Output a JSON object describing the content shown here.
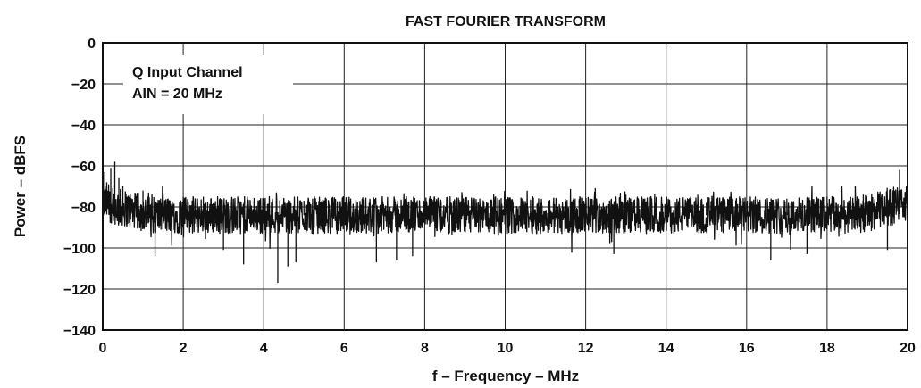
{
  "chart_data": {
    "type": "line",
    "title": "FAST FOURIER TRANSFORM",
    "xlabel": "f – Frequency – MHz",
    "ylabel": "Power – dBFS",
    "xlim": [
      0,
      20
    ],
    "ylim": [
      -140,
      0
    ],
    "xticks": [
      0,
      2,
      4,
      6,
      8,
      10,
      12,
      14,
      16,
      18,
      20
    ],
    "yticks": [
      0,
      -20,
      -40,
      -60,
      -80,
      -100,
      -120,
      -140
    ],
    "xtick_labels": [
      "0",
      "2",
      "4",
      "6",
      "8",
      "10",
      "12",
      "14",
      "16",
      "18",
      "20"
    ],
    "ytick_labels": [
      "0",
      "−20",
      "−40",
      "−60",
      "−80",
      "−100",
      "−120",
      "−140"
    ],
    "grid": true,
    "annotation": {
      "lines": [
        "Q Input Channel",
        "AIN = 20 MHz"
      ],
      "placement": "top-left"
    },
    "series": [
      {
        "color": "#111111",
        "noise_floor_db": -84,
        "noise_peak_to_peak_db": 18,
        "x": [
          0,
          0.05,
          0.1,
          0.2,
          0.25,
          0.3,
          0.4,
          0.5,
          1.0,
          1.3,
          1.5,
          2.0,
          2.5,
          3.0,
          3.5,
          4.0,
          4.35,
          4.6,
          4.8,
          5.0,
          6.0,
          6.8,
          7.3,
          7.7,
          8.0,
          9.0,
          10.0,
          11.0,
          12.0,
          12.7,
          13.0,
          13.4,
          14.0,
          15.0,
          16.0,
          16.6,
          17.0,
          17.5,
          18.0,
          18.9,
          19.5,
          19.8,
          20.0
        ],
        "y": [
          -103,
          -63,
          -68,
          -61,
          -71,
          -58,
          -66,
          -70,
          -72,
          -104,
          -74,
          -75,
          -75,
          -101,
          -108,
          -76,
          -117,
          -109,
          -107,
          -77,
          -78,
          -107,
          -106,
          -104,
          -79,
          -80,
          -82,
          -82,
          -81,
          -103,
          -74,
          -77,
          -78,
          -78,
          -78,
          -106,
          -76,
          -103,
          -75,
          -74,
          -101,
          -62,
          -59
        ]
      }
    ]
  }
}
